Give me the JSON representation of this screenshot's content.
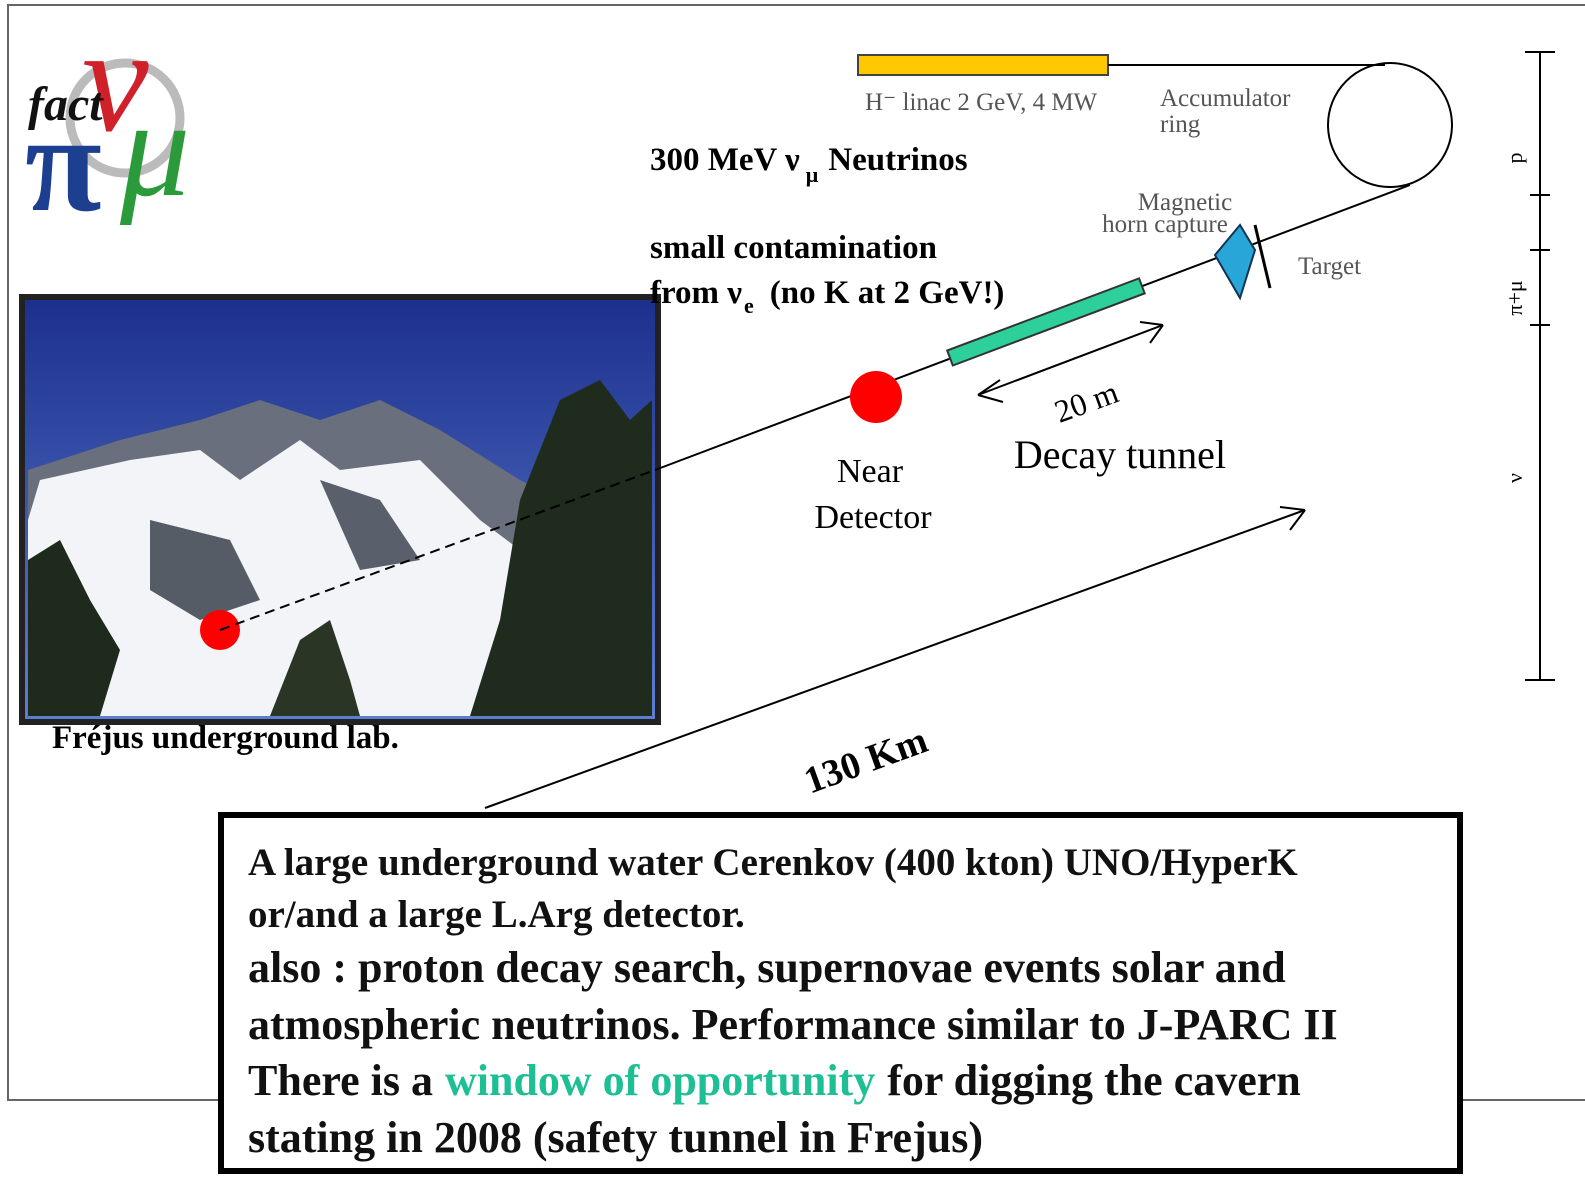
{
  "logo": {
    "word": "fact",
    "nu": "ν",
    "pi": "π",
    "mu": "μ"
  },
  "beamline": {
    "linac": "H⁻ linac 2 GeV, 4 MW",
    "accumulator": [
      "Accumulator",
      "ring"
    ],
    "horn": [
      "Magnetic",
      "horn capture"
    ],
    "target": "Target",
    "distance": "20 m",
    "decay_tunnel": "Decay tunnel",
    "near_detector": [
      "Near",
      "Detector"
    ],
    "baseline": "130 Km"
  },
  "notes": {
    "neutrinos": {
      "prefix": "300 MeV ν",
      "subscript": "μ",
      "suffix": "Neutrinos"
    },
    "contamination": {
      "line1": "small contamination",
      "prefix": "from ν",
      "subscript": "e",
      "suffix": "(no K at 2 GeV!)"
    }
  },
  "lab": "Fréjus underground lab.",
  "scale_labels": [
    "p",
    "π+μ",
    "ν"
  ],
  "box": {
    "lines": [
      "A large underground water Cerenkov (400 kton) UNO/HyperK",
      "or/and a large L.Arg detector.",
      "also : proton decay search, supernovae events solar and",
      "atmospheric neutrinos. Performance similar to J-PARC II"
    ],
    "highlight_line": {
      "before": "There is a",
      "highlight": "window of opportunity",
      "after": "for digging the cavern"
    },
    "last_line": "stating in 2008 (safety tunnel in Frejus)"
  }
}
